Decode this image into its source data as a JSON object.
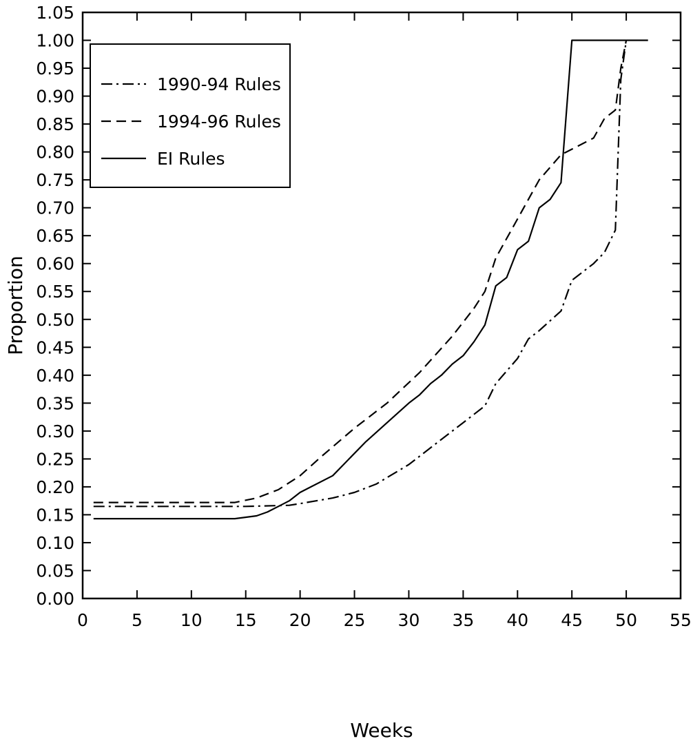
{
  "chart_data": {
    "type": "line",
    "title": "",
    "xlabel": "Weeks",
    "ylabel": "Proportion",
    "xlim": [
      0,
      55
    ],
    "ylim": [
      0,
      1.05
    ],
    "xticks": [
      0,
      5,
      10,
      15,
      20,
      25,
      30,
      35,
      40,
      45,
      50,
      55
    ],
    "yticks": [
      0.0,
      0.05,
      0.1,
      0.15,
      0.2,
      0.25,
      0.3,
      0.35,
      0.4,
      0.45,
      0.5,
      0.55,
      0.6,
      0.65,
      0.7,
      0.75,
      0.8,
      0.85,
      0.9,
      0.95,
      1.0,
      1.05
    ],
    "grid": false,
    "legend_position": "top-left",
    "series": [
      {
        "name": "1990-94 Rules",
        "dash": "dashdot",
        "x": [
          1,
          5,
          10,
          15,
          19,
          20,
          23,
          25,
          27,
          30,
          33,
          35,
          37,
          38,
          40,
          41,
          42,
          44,
          45,
          47,
          48,
          49,
          49.5,
          50
        ],
        "y": [
          0.165,
          0.165,
          0.165,
          0.165,
          0.167,
          0.17,
          0.18,
          0.19,
          0.205,
          0.24,
          0.285,
          0.315,
          0.345,
          0.385,
          0.43,
          0.465,
          0.48,
          0.515,
          0.57,
          0.6,
          0.62,
          0.66,
          0.93,
          1.0
        ]
      },
      {
        "name": "1994-96 Rules",
        "dash": "dashed",
        "x": [
          1,
          5,
          10,
          14,
          16,
          18,
          20,
          22,
          25,
          28,
          31,
          34,
          36,
          37,
          38,
          40,
          42,
          44,
          46,
          47,
          48,
          49,
          49.5,
          50
        ],
        "y": [
          0.172,
          0.172,
          0.172,
          0.172,
          0.18,
          0.195,
          0.22,
          0.255,
          0.305,
          0.35,
          0.405,
          0.47,
          0.52,
          0.55,
          0.61,
          0.68,
          0.75,
          0.795,
          0.815,
          0.825,
          0.86,
          0.875,
          0.95,
          1.0
        ]
      },
      {
        "name": "EI Rules",
        "dash": "solid",
        "x": [
          1,
          5,
          10,
          14,
          16,
          17,
          18,
          19,
          20,
          21,
          23,
          24,
          25,
          26,
          28,
          30,
          31,
          32,
          33,
          34,
          35,
          36,
          37,
          38,
          39,
          40,
          41,
          42,
          43,
          44,
          45,
          50,
          52
        ],
        "y": [
          0.143,
          0.143,
          0.143,
          0.143,
          0.148,
          0.155,
          0.165,
          0.175,
          0.19,
          0.2,
          0.22,
          0.24,
          0.26,
          0.28,
          0.315,
          0.35,
          0.365,
          0.385,
          0.4,
          0.42,
          0.435,
          0.46,
          0.49,
          0.56,
          0.575,
          0.625,
          0.64,
          0.7,
          0.715,
          0.745,
          1.0,
          1.0,
          1.0
        ]
      }
    ]
  }
}
